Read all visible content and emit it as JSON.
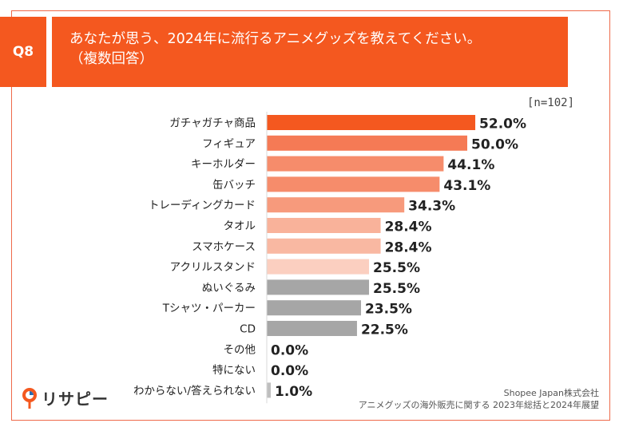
{
  "header": {
    "badge": "Q8",
    "question_line1": "あなたが思う、2024年に流行るアニメグッズを教えてください。",
    "question_line2": "（複数回答）",
    "color": "#f4581f"
  },
  "sample_note": "[n=102]",
  "chart_data": {
    "type": "bar",
    "orientation": "horizontal",
    "title": "あなたが思う、2024年に流行るアニメグッズを教えてください。（複数回答）",
    "unit": "%",
    "xlim": [
      0,
      100
    ],
    "categories": [
      "ガチャガチャ商品",
      "フィギュア",
      "キーホルダー",
      "缶バッチ",
      "トレーディングカード",
      "タオル",
      "スマホケース",
      "アクリルスタンド",
      "ぬいぐるみ",
      "Tシャツ・パーカー",
      "CD",
      "その他",
      "特にない",
      "わからない/答えられない"
    ],
    "values": [
      52.0,
      50.0,
      44.1,
      43.1,
      34.3,
      28.4,
      28.4,
      25.5,
      25.5,
      23.5,
      22.5,
      0.0,
      0.0,
      1.0
    ],
    "value_labels": [
      "52.0%",
      "50.0%",
      "44.1%",
      "43.1%",
      "34.3%",
      "28.4%",
      "28.4%",
      "25.5%",
      "25.5%",
      "23.5%",
      "22.5%",
      "0.0%",
      "0.0%",
      "1.0%"
    ],
    "colors": [
      "#f4581f",
      "#f57a55",
      "#f68c6b",
      "#f68c6b",
      "#f79a7c",
      "#f9b29a",
      "#f9b8a2",
      "#fbcfc0",
      "#a6a6a6",
      "#a6a6a6",
      "#a6a6a6",
      "#bfbfbf",
      "#bfbfbf",
      "#bfbfbf"
    ]
  },
  "logo": {
    "text": "リサピー"
  },
  "source": {
    "line1": "Shopee Japan株式会社",
    "line2": "アニメグッズの海外販売に関する 2023年総括と2024年展望"
  }
}
